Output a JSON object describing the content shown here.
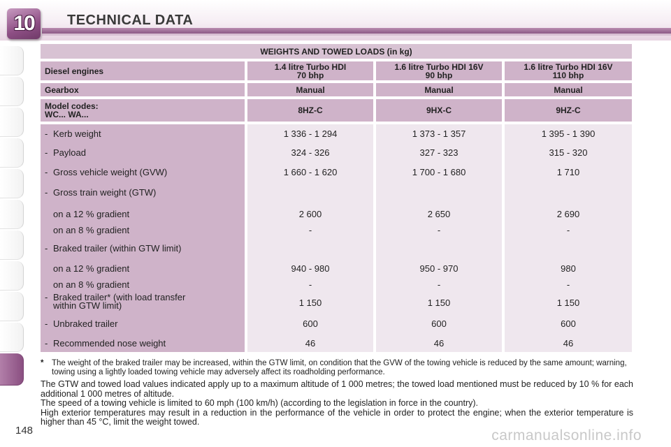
{
  "header": {
    "chapter_number": "10",
    "title": "TECHNICAL DATA"
  },
  "page_number": "148",
  "table": {
    "title": "WEIGHTS AND TOWED LOADS (in kg)",
    "engines_label": "Diesel engines",
    "engines": [
      {
        "line1": "1.4 litre Turbo HDI",
        "line2": "70 bhp"
      },
      {
        "line1": "1.6 litre Turbo HDI 16V",
        "line2": "90 bhp"
      },
      {
        "line1": "1.6 litre Turbo HDI 16V",
        "line2": "110 bhp"
      }
    ],
    "gearbox_label": "Gearbox",
    "gearbox": [
      "Manual",
      "Manual",
      "Manual"
    ],
    "model_codes_label_1": "Model codes:",
    "model_codes_label_2": "WC... WA...",
    "model_codes": [
      "8HZ-C",
      "9HX-C",
      "9HZ-C"
    ],
    "rows": [
      {
        "label": "Kerb weight",
        "dash": "-",
        "values": [
          "1 336 - 1 294",
          "1 373 - 1 357",
          "1 395 - 1 390"
        ]
      },
      {
        "label": "Payload",
        "dash": "-",
        "values": [
          "324 - 326",
          "327 - 323",
          "315 - 320"
        ]
      },
      {
        "label": "Gross vehicle weight (GVW)",
        "dash": "-",
        "values": [
          "1 660 - 1 620",
          "1 700 - 1 680",
          "1 710"
        ]
      },
      {
        "label": "Gross train weight (GTW)",
        "dash": "-",
        "values": [
          "",
          "",
          ""
        ]
      },
      {
        "label": "on a 12 % gradient",
        "dash": "",
        "values": [
          "2 600",
          "2 650",
          "2 690"
        ]
      },
      {
        "label": "on an 8 % gradient",
        "dash": "",
        "values": [
          "-",
          "-",
          "-"
        ]
      },
      {
        "label": "Braked trailer (within GTW limit)",
        "dash": "-",
        "values": [
          "",
          "",
          ""
        ]
      },
      {
        "label": "on a 12 % gradient",
        "dash": "",
        "values": [
          "940 - 980",
          "950 - 970",
          "980"
        ]
      },
      {
        "label": "on an 8 % gradient",
        "dash": "",
        "values": [
          "-",
          "-",
          "-"
        ]
      },
      {
        "label": "Braked trailer* (with load transfer",
        "label2": "within GTW limit)",
        "dash": "-",
        "values": [
          "1 150",
          "1 150",
          "1 150"
        ]
      },
      {
        "label": "Unbraked trailer",
        "dash": "-",
        "values": [
          "600",
          "600",
          "600"
        ]
      },
      {
        "label": "Recommended nose weight",
        "dash": "-",
        "values": [
          "46",
          "46",
          "46"
        ]
      }
    ]
  },
  "footnote": {
    "marker": "*",
    "text": "The weight of the braked trailer may be increased, within the GTW limit, on condition that the GVW of the towing vehicle is reduced by the same amount; warning, towing using a lightly loaded towing vehicle may adversely affect its roadholding performance."
  },
  "paragraphs": [
    "The GTW and towed load values indicated apply up to a maximum altitude of 1 000 metres; the towed load mentioned must be reduced by 10 % for each additional 1 000 metres of altitude.",
    "The speed of a towing vehicle is limited to 60 mph (100 km/h) (according to the legislation in force in the country).",
    "High exterior temperatures may result in a reduction in the performance of the vehicle in order to protect the engine; when the exterior temperature is higher than 45 °C, limit the weight towed."
  ],
  "watermark": "carmanualsonline.info"
}
